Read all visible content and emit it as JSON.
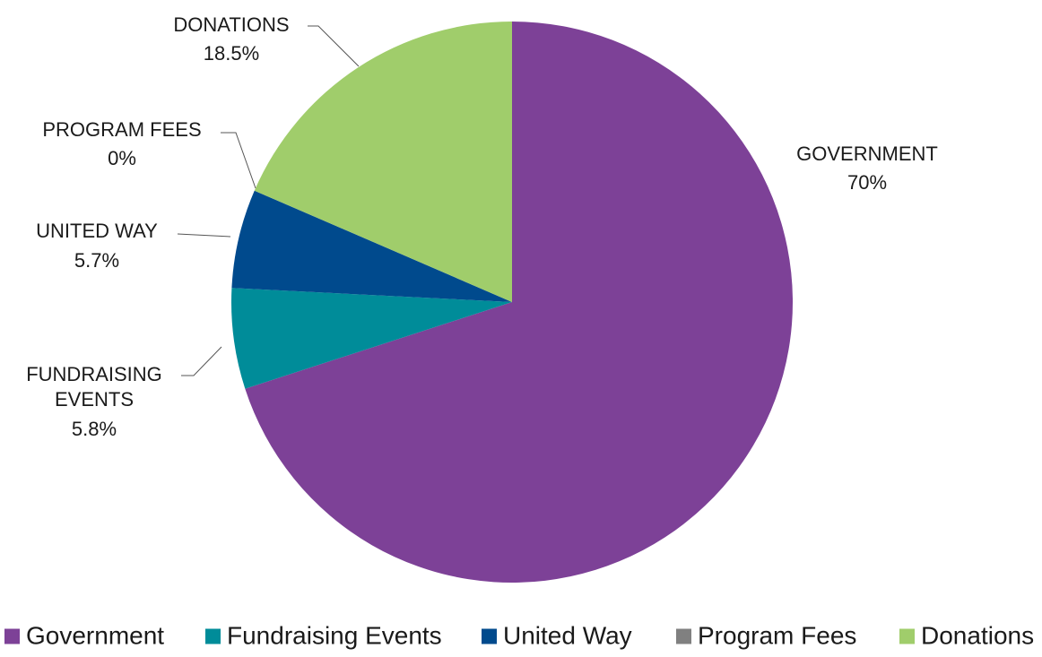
{
  "chart_data": {
    "type": "pie",
    "title": "",
    "legend_position": "bottom",
    "slices": [
      {
        "name": "Government",
        "value": 70,
        "label": "GOVERNMENT",
        "pct_label": "70%",
        "color": "#7d4197"
      },
      {
        "name": "Fundraising Events",
        "value": 5.8,
        "label": "FUNDRAISING EVENTS",
        "pct_label": "5.8%",
        "color": "#008c99"
      },
      {
        "name": "United Way",
        "value": 5.7,
        "label": "UNITED WAY",
        "pct_label": "5.7%",
        "color": "#004a8d"
      },
      {
        "name": "Program Fees",
        "value": 0,
        "label": "PROGRAM FEES",
        "pct_label": "0%",
        "color": "#808080"
      },
      {
        "name": "Donations",
        "value": 18.5,
        "label": "DONATIONS",
        "pct_label": "18.5%",
        "color": "#a0cd6b"
      }
    ]
  }
}
